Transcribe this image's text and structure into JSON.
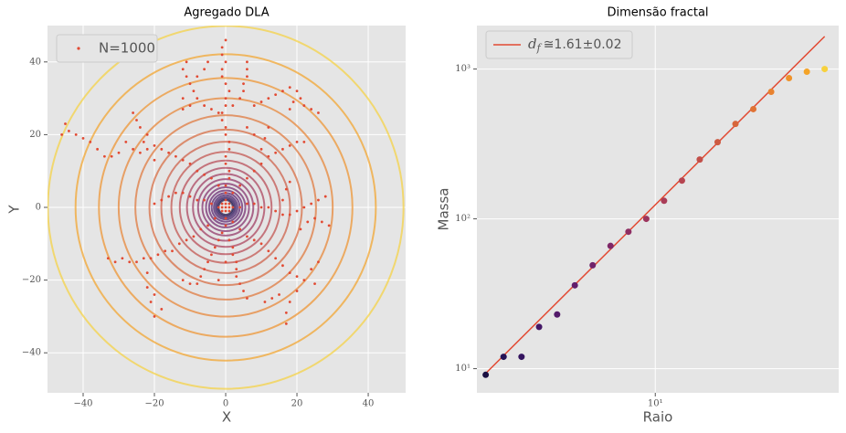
{
  "chart_data": [
    {
      "type": "scatter",
      "title": "Agregado DLA",
      "x_label": "X",
      "y_label": "Y",
      "xlim": [
        -50,
        50.5
      ],
      "ylim": [
        -51,
        50
      ],
      "xticks": [
        {
          "value": -40,
          "label": "−40"
        },
        {
          "value": -20,
          "label": "−20"
        },
        0,
        20,
        40
      ],
      "yticks": [
        {
          "value": -40,
          "label": "−40"
        },
        {
          "value": -20,
          "label": "−20"
        },
        0,
        20,
        40
      ],
      "grid": true,
      "legend": "upper left",
      "series": [
        {
          "name": "N=1000",
          "color": "#e24a33",
          "x": [
            0,
            0,
            0,
            1,
            1,
            0,
            0,
            1,
            1,
            0,
            0,
            -1,
            -1,
            0,
            0,
            1,
            0,
            -1,
            -1,
            0,
            -1,
            -1,
            0,
            -2,
            -4,
            -6,
            -8,
            -9,
            -10,
            -11,
            -12,
            -11,
            -8,
            -6,
            -5,
            -10,
            -12,
            -12,
            2,
            4,
            5,
            5,
            6,
            6,
            6,
            8,
            10,
            12,
            14,
            16,
            18,
            20,
            21,
            22,
            24,
            26,
            19,
            18,
            -2,
            -4,
            -6,
            -8,
            -10,
            -12,
            -14,
            -16,
            -18,
            -20,
            -22,
            -24,
            -26,
            -28,
            -30,
            -32,
            -34,
            -36,
            -38,
            -40,
            -42,
            -44,
            -45,
            -46,
            -22,
            -24,
            -25,
            -26,
            -23,
            -20,
            -2,
            -4,
            -6,
            -8,
            -10,
            -12,
            -14,
            -16,
            -18,
            -20,
            -3,
            -5,
            -7,
            -9,
            -11,
            -13,
            -15,
            -17,
            -19,
            -21,
            -23,
            -25,
            -27,
            -29,
            -31,
            -33,
            -22,
            -22,
            -21,
            -20,
            -18,
            -20,
            0,
            0,
            -1,
            -2,
            -3,
            -4,
            -5,
            -6,
            -7,
            -8,
            -10,
            -12,
            1,
            2,
            2,
            3,
            3,
            3,
            4,
            5,
            6,
            0,
            -2,
            2,
            4,
            6,
            8,
            10,
            12,
            14,
            16,
            18,
            20,
            22,
            24,
            26,
            28,
            29,
            27,
            25,
            23,
            21,
            16,
            17,
            18,
            2,
            4,
            6,
            8,
            10,
            12,
            14,
            16,
            18,
            20,
            22,
            10,
            11,
            12,
            8,
            6,
            2,
            4,
            6,
            8,
            10,
            12,
            14,
            16,
            18,
            20,
            22,
            24,
            26,
            25,
            20,
            18,
            17,
            17,
            15,
            13,
            11,
            0,
            1,
            -1,
            1,
            -1,
            0,
            0,
            1,
            -1
          ],
          "y": [
            2,
            4,
            6,
            8,
            10,
            12,
            14,
            16,
            18,
            20,
            22,
            24,
            26,
            28,
            30,
            32,
            34,
            36,
            38,
            40,
            42,
            44,
            46,
            26,
            27,
            28,
            30,
            32,
            34,
            36,
            38,
            40,
            36,
            38,
            40,
            28,
            27,
            30,
            28,
            30,
            32,
            34,
            36,
            38,
            40,
            28,
            29,
            30,
            31,
            32,
            33,
            32,
            30,
            28,
            27,
            26,
            29,
            27,
            6,
            8,
            9,
            10,
            12,
            13,
            14,
            15,
            16,
            17,
            16,
            15,
            16,
            18,
            15,
            14,
            14,
            16,
            18,
            19,
            20,
            21,
            23,
            20,
            20,
            22,
            24,
            26,
            18,
            13,
            0,
            1,
            2,
            2,
            3,
            4,
            4,
            3,
            2,
            1,
            -3,
            -5,
            -6,
            -8,
            -9,
            -10,
            -12,
            -12,
            -13,
            -14,
            -14,
            -15,
            -15,
            -14,
            -15,
            -14,
            -18,
            -22,
            -26,
            -24,
            -28,
            -30,
            -3,
            -5,
            -7,
            -9,
            -11,
            -13,
            -15,
            -17,
            -19,
            -21,
            -21,
            -20,
            -9,
            -11,
            -13,
            -15,
            -17,
            -19,
            -21,
            -23,
            -25,
            -15,
            -20,
            0,
            0,
            1,
            1,
            0,
            0,
            -1,
            -2,
            -2,
            -1,
            0,
            1,
            2,
            3,
            -5,
            -4,
            -3,
            -4,
            -6,
            2,
            5,
            7,
            4,
            6,
            8,
            10,
            12,
            14,
            15,
            16,
            17,
            18,
            18,
            16,
            19,
            22,
            20,
            22,
            -4,
            -6,
            -8,
            -9,
            -10,
            -12,
            -14,
            -16,
            -18,
            -19,
            -20,
            -17,
            -15,
            -21,
            -23,
            -26,
            -29,
            -32,
            -24,
            -25,
            -26,
            0,
            1,
            1,
            -1,
            -1,
            1,
            -1,
            0,
            0
          ]
        }
      ],
      "circles": {
        "radii": [
          2.0,
          2.37,
          2.81,
          3.32,
          3.94,
          4.66,
          5.52,
          6.54,
          7.75,
          9.18,
          10.87,
          12.88,
          15.25,
          18.07,
          21.4,
          25.35,
          30.03,
          35.57,
          42.13,
          49.9
        ],
        "colors": [
          "#1a1042",
          "#251255",
          "#34145f",
          "#431766",
          "#521a6a",
          "#611e6c",
          "#70236b",
          "#7f2868",
          "#8e2e63",
          "#9c355d",
          "#a93c57",
          "#b64550",
          "#c24f49",
          "#cd5a42",
          "#d7663b",
          "#e07335",
          "#e8822f",
          "#ef922a",
          "#f4a327",
          "#f7d13d"
        ]
      }
    },
    {
      "type": "scatter",
      "title": "Dimensão fractal",
      "x_label": "Raio",
      "y_label": "Massa",
      "xscale": "log",
      "yscale": "log",
      "xlim": [
        1.84,
        57
      ],
      "ylim": [
        6.9,
        1950
      ],
      "xticks": [
        {
          "value": 10,
          "label": "10¹"
        }
      ],
      "yticks": [
        {
          "value": 10,
          "label": "10¹"
        },
        {
          "value": 100,
          "label": "10²"
        },
        {
          "value": 1000,
          "label": "10³"
        }
      ],
      "grid": true,
      "legend": "upper left",
      "x": [
        2.0,
        2.37,
        2.81,
        3.32,
        3.94,
        4.66,
        5.52,
        6.54,
        7.75,
        9.18,
        10.87,
        12.88,
        15.25,
        18.07,
        21.4,
        25.35,
        30.03,
        35.57,
        42.13,
        49.9
      ],
      "values": [
        9.1,
        12,
        12,
        19,
        23,
        36,
        49,
        66,
        82,
        100,
        132,
        180,
        249,
        325,
        430,
        540,
        705,
        870,
        960,
        1000
      ],
      "colors": [
        "#1a1042",
        "#251255",
        "#34145f",
        "#431766",
        "#521a6a",
        "#611e6c",
        "#70236b",
        "#7f2868",
        "#8e2e63",
        "#9c355d",
        "#a93c57",
        "#b64550",
        "#c24f49",
        "#cd5a42",
        "#d7663b",
        "#e07335",
        "#e8822f",
        "#ef922a",
        "#f4a327",
        "#f7d13d"
      ],
      "fit": {
        "label_parts": [
          "d",
          "f",
          "≅1.61±0.02"
        ],
        "color": "#e24a33",
        "x": [
          2.0,
          49.9
        ],
        "values": [
          9.3,
          1650
        ]
      }
    }
  ]
}
